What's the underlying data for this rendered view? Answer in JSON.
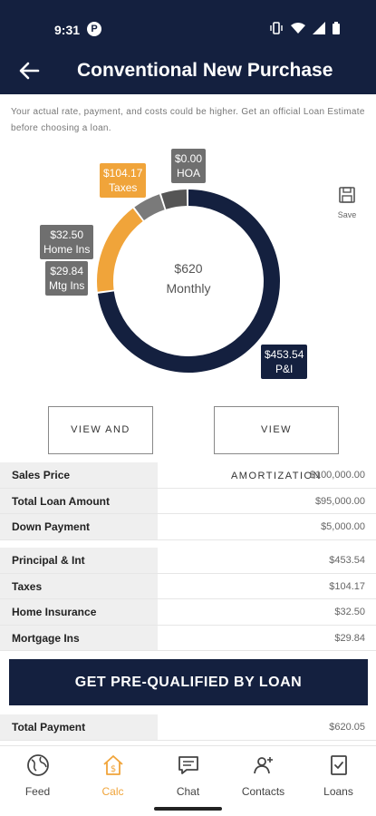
{
  "status_bar": {
    "time": "9:31",
    "app_badge": "P"
  },
  "header": {
    "title": "Conventional New Purchase"
  },
  "disclaimer": "Your actual rate, payment, and costs could be higher. Get an official Loan Estimate before choosing a loan.",
  "chart_data": {
    "type": "pie",
    "style": "donut",
    "center_label": {
      "amount": "$620",
      "caption": "Monthly"
    },
    "slices": [
      {
        "label": "P&I",
        "amount_text": "$453.54",
        "value": 453.54,
        "color": "#14203f"
      },
      {
        "label": "Taxes",
        "amount_text": "$104.17",
        "value": 104.17,
        "color": "#f0a43a"
      },
      {
        "label": "HOA",
        "amount_text": "$0.00",
        "value": 0.0,
        "color": "#6f6f6f"
      },
      {
        "label": "Home Ins",
        "amount_text": "$32.50",
        "value": 32.5,
        "color": "#7a7a7a"
      },
      {
        "label": "Mtg Ins",
        "amount_text": "$29.84",
        "value": 29.84,
        "color": "#555555"
      }
    ]
  },
  "save": {
    "label": "Save"
  },
  "buttons": {
    "view_share": "VIEW AND SHARE",
    "view_amortization": "VIEW AMORTIZATION"
  },
  "loan_table": [
    {
      "label": "Sales Price",
      "value": "$100,000.00"
    },
    {
      "label": "Total Loan Amount",
      "value": "$95,000.00"
    },
    {
      "label": "Down Payment",
      "value": "$5,000.00"
    }
  ],
  "payment_table": [
    {
      "label": "Principal & Int",
      "value": "$453.54"
    },
    {
      "label": "Taxes",
      "value": "$104.17"
    },
    {
      "label": "Home Insurance",
      "value": "$32.50"
    },
    {
      "label": "Mortgage Ins",
      "value": "$29.84"
    }
  ],
  "cta": {
    "label": "GET PRE-QUALIFIED BY LOAN"
  },
  "total_row": {
    "label": "Total Payment",
    "value": "$620.05"
  },
  "nav": [
    {
      "label": "Feed",
      "icon": "globe-icon",
      "active": false
    },
    {
      "label": "Calc",
      "icon": "house-dollar-icon",
      "active": true
    },
    {
      "label": "Chat",
      "icon": "chat-icon",
      "active": false
    },
    {
      "label": "Contacts",
      "icon": "contacts-icon",
      "active": false
    },
    {
      "label": "Loans",
      "icon": "document-check-icon",
      "active": false
    }
  ],
  "colors": {
    "navy": "#14203f",
    "orange": "#f0a43a",
    "gray": "#6f6f6f"
  }
}
